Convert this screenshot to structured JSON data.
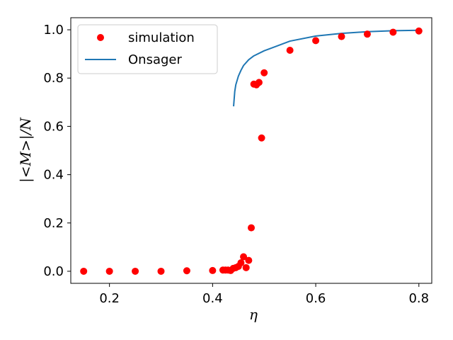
{
  "chart_data": {
    "type": "scatter",
    "xlabel": "η",
    "ylabel": "|<M>|/N",
    "xlim": [
      0.125,
      0.825
    ],
    "ylim": [
      -0.05,
      1.05
    ],
    "x_ticks": [
      0.2,
      0.4,
      0.6,
      0.8
    ],
    "x_tick_labels": [
      "0.2",
      "0.4",
      "0.6",
      "0.8"
    ],
    "y_ticks": [
      0.0,
      0.2,
      0.4,
      0.6,
      0.8,
      1.0
    ],
    "y_tick_labels": [
      "0.0",
      "0.2",
      "0.4",
      "0.6",
      "0.8",
      "1.0"
    ],
    "grid": false,
    "legend_position": "top-left",
    "series": [
      {
        "name": "simulation",
        "kind": "scatter",
        "color": "#ff0000",
        "x": [
          0.15,
          0.2,
          0.25,
          0.3,
          0.35,
          0.4,
          0.42,
          0.425,
          0.43,
          0.435,
          0.44,
          0.445,
          0.45,
          0.455,
          0.46,
          0.465,
          0.47,
          0.475,
          0.48,
          0.485,
          0.49,
          0.495,
          0.5,
          0.55,
          0.6,
          0.65,
          0.7,
          0.75,
          0.8
        ],
        "y": [
          0.0,
          0.0,
          0.0,
          0.0,
          0.002,
          0.003,
          0.005,
          0.005,
          0.005,
          0.003,
          0.012,
          0.015,
          0.02,
          0.035,
          0.06,
          0.015,
          0.045,
          0.18,
          0.775,
          0.772,
          0.782,
          0.552,
          0.822,
          0.915,
          0.955,
          0.972,
          0.982,
          0.99,
          0.995
        ]
      },
      {
        "name": "Onsager",
        "kind": "line",
        "color": "#1f77b4",
        "x": [
          0.4407,
          0.443,
          0.445,
          0.45,
          0.455,
          0.46,
          0.47,
          0.48,
          0.5,
          0.55,
          0.6,
          0.65,
          0.7,
          0.75,
          0.8
        ],
        "y": [
          0.683,
          0.745,
          0.772,
          0.808,
          0.832,
          0.852,
          0.876,
          0.892,
          0.913,
          0.953,
          0.974,
          0.985,
          0.992,
          0.996,
          0.998
        ]
      }
    ]
  }
}
